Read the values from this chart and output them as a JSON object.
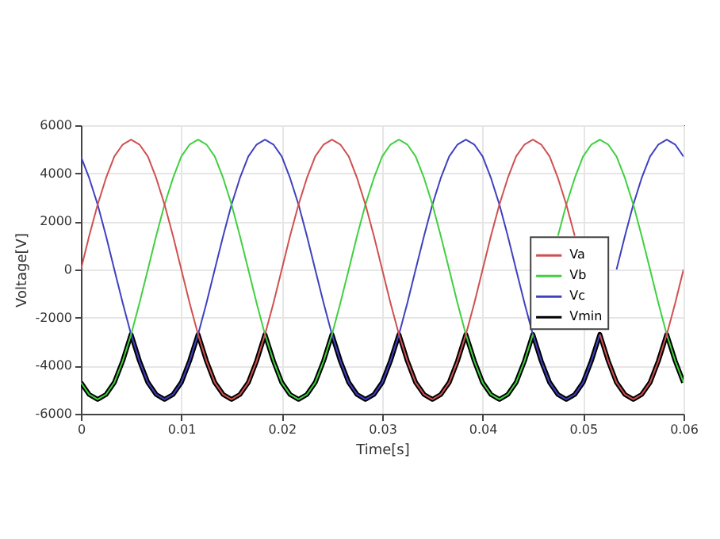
{
  "chart_data": {
    "type": "line",
    "xlabel": "Time[s]",
    "ylabel": "Voltage[V]",
    "x": [
      0,
      0.00083,
      0.00167,
      0.0025,
      0.00333,
      0.00417,
      0.005,
      0.00583,
      0.00667,
      0.0075,
      0.00833,
      0.00917,
      0.01,
      0.01083,
      0.01167,
      0.0125,
      0.01333,
      0.01417,
      0.015,
      0.01583,
      0.01667,
      0.0175,
      0.01833,
      0.01917,
      0.02,
      0.02083,
      0.02167,
      0.0225,
      0.02333,
      0.02417,
      0.025,
      0.02583,
      0.02667,
      0.0275,
      0.02833,
      0.02917,
      0.03,
      0.03083,
      0.03167,
      0.0325,
      0.03333,
      0.03417,
      0.035,
      0.03583,
      0.03667,
      0.0375,
      0.03833,
      0.03917,
      0.04,
      0.04083,
      0.04167,
      0.0425,
      0.04333,
      0.04417,
      0.045,
      0.04583,
      0.04667,
      0.0475,
      0.04833,
      0.04917,
      0.05,
      0.05083,
      0.05167,
      0.0525,
      0.05333,
      0.05417,
      0.055,
      0.05583,
      0.05667,
      0.0575,
      0.05833,
      0.05917,
      0.06
    ],
    "series": [
      {
        "name": "Va",
        "color": "#d05050",
        "values": [
          0,
          1400,
          2700,
          3800,
          4700,
          5200,
          5400,
          5200,
          4700,
          3800,
          2700,
          1400,
          0,
          -1400,
          -2700,
          -3800,
          -4700,
          -5200,
          -5400,
          -5200,
          -4700,
          -3800,
          -2700,
          -1400,
          0,
          1400,
          2700,
          3800,
          4700,
          5200,
          5400,
          5200,
          4700,
          3800,
          2700,
          1400,
          0,
          -1400,
          -2700,
          -3800,
          -4700,
          -5200,
          -5400,
          -5200,
          -4700,
          -3800,
          -2700,
          -1400,
          0,
          1400,
          2700,
          3800,
          4700,
          5200,
          5400,
          5200,
          4700,
          3800,
          2700,
          1400,
          null,
          null,
          -2700,
          -3800,
          -4700,
          -5200,
          -5400,
          -5200,
          -4700,
          -3800,
          -2700,
          -1400,
          0
        ]
      },
      {
        "name": "Vb",
        "color": "#40d040",
        "values": [
          -4700,
          -5200,
          -5400,
          -5200,
          -4700,
          -3800,
          -2700,
          -1400,
          0,
          1400,
          2700,
          3800,
          4700,
          5200,
          5400,
          5200,
          4700,
          3800,
          2700,
          1400,
          0,
          -1400,
          -2700,
          -3800,
          -4700,
          -5200,
          -5400,
          -5200,
          -4700,
          -3800,
          -2700,
          -1400,
          0,
          1400,
          2700,
          3800,
          4700,
          5200,
          5400,
          5200,
          4700,
          3800,
          2700,
          1400,
          0,
          -1400,
          -2700,
          -3800,
          -4700,
          -5200,
          -5400,
          -5200,
          -4700,
          -3800,
          -2700,
          null,
          null,
          1400,
          2700,
          3800,
          4700,
          5200,
          5400,
          5200,
          4700,
          3800,
          2700,
          1400,
          0,
          -1400,
          -2700,
          -3800,
          -4700
        ]
      },
      {
        "name": "Vc",
        "color": "#4040c0",
        "values": [
          4700,
          3800,
          2700,
          1400,
          0,
          -1400,
          -2700,
          -3800,
          -4700,
          -5200,
          -5400,
          -5200,
          -4700,
          -3800,
          -2700,
          -1400,
          0,
          1400,
          2700,
          3800,
          4700,
          5200,
          5400,
          5200,
          4700,
          3800,
          2700,
          1400,
          0,
          -1400,
          -2700,
          -3800,
          -4700,
          -5200,
          -5400,
          -5200,
          -4700,
          -3800,
          -2700,
          -1400,
          0,
          1400,
          2700,
          3800,
          4700,
          5200,
          5400,
          5200,
          4700,
          3800,
          2700,
          1400,
          0,
          -1400,
          -2700,
          -3800,
          -4700,
          -5200,
          -5400,
          -5200,
          -4700,
          -3800,
          -2700,
          null,
          0,
          1400,
          2700,
          3800,
          4700,
          5200,
          5400,
          5200,
          4700
        ]
      },
      {
        "name": "Vmin",
        "color": "#000000",
        "values": [
          -4700,
          -5200,
          -5400,
          -5200,
          -4700,
          -3800,
          -2700,
          -3800,
          -4700,
          -5200,
          -5400,
          -5200,
          -4700,
          -3800,
          -2700,
          -3800,
          -4700,
          -5200,
          -5400,
          -5200,
          -4700,
          -3800,
          -2700,
          -3800,
          -4700,
          -5200,
          -5400,
          -5200,
          -4700,
          -3800,
          -2700,
          -3800,
          -4700,
          -5200,
          -5400,
          -5200,
          -4700,
          -3800,
          -2700,
          -3800,
          -4700,
          -5200,
          -5400,
          -5200,
          -4700,
          -3800,
          -2700,
          -3800,
          -4700,
          -5200,
          -5400,
          -5200,
          -4700,
          -3800,
          -2700,
          -3800,
          -4700,
          -5200,
          -5400,
          -5200,
          -4700,
          -3800,
          -2700,
          -3800,
          -4700,
          -5200,
          -5400,
          -5200,
          -4700,
          -3800,
          -2700,
          -3800,
          -4700
        ]
      }
    ],
    "xlim": [
      0,
      0.06
    ],
    "xticks": [
      0,
      0.01,
      0.02,
      0.03,
      0.04,
      0.05,
      0.06
    ],
    "ylim": [
      -6000,
      6000
    ],
    "yticks": [
      -6000,
      -4000,
      -2000,
      0,
      2000,
      4000,
      6000
    ],
    "grid": true,
    "legend": "right"
  }
}
